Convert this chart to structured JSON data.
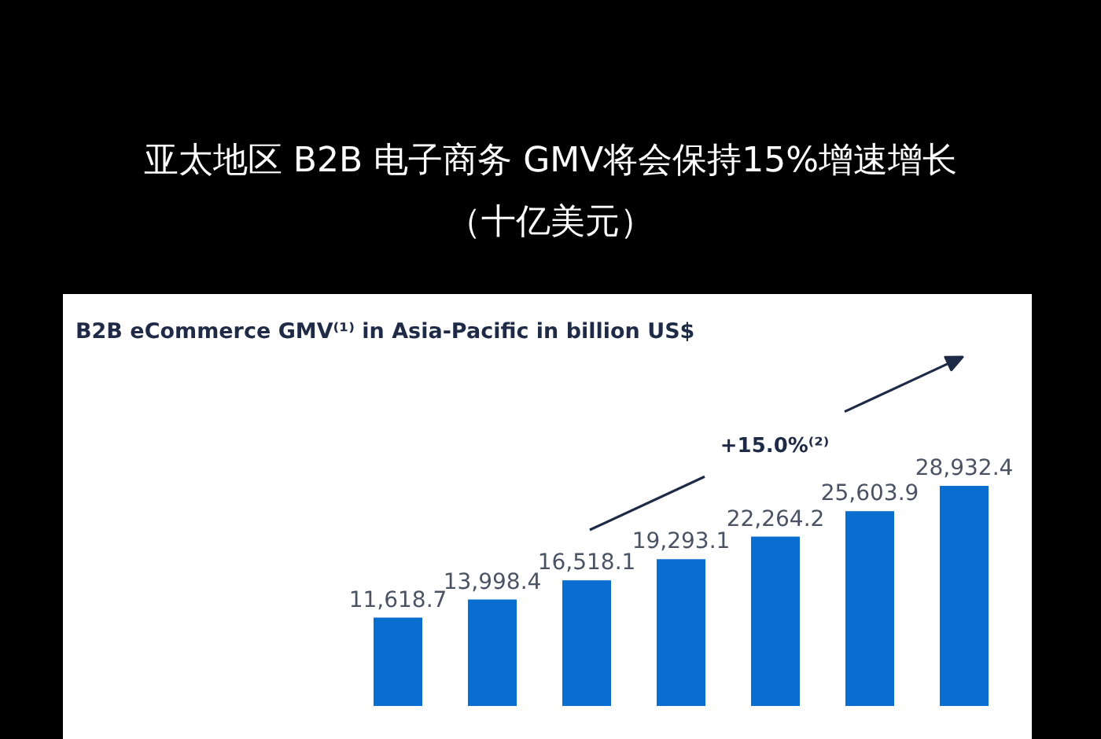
{
  "chart_data": {
    "type": "bar",
    "title": "亚太地区 B2B 电子商务 GMV将会保持15%增速增长",
    "subtitle": "（十亿美元）",
    "annotations": [
      "B2B eCommerce GMV⁽¹⁾ in Asia-Pacific in billion US$",
      "+15.0%⁽²⁾"
    ],
    "categories": [
      null,
      null,
      null,
      null,
      null,
      null,
      null
    ],
    "values": [
      11618.7,
      13998.4,
      16518.1,
      19293.1,
      22264.2,
      25603.9,
      28932.4
    ],
    "value_labels": [
      "11,618.7",
      "13,998.4",
      "16,518.1",
      "19,293.1",
      "22,264.2",
      "25,603.9",
      "28,932.4"
    ],
    "color": "#0a6ed1"
  }
}
